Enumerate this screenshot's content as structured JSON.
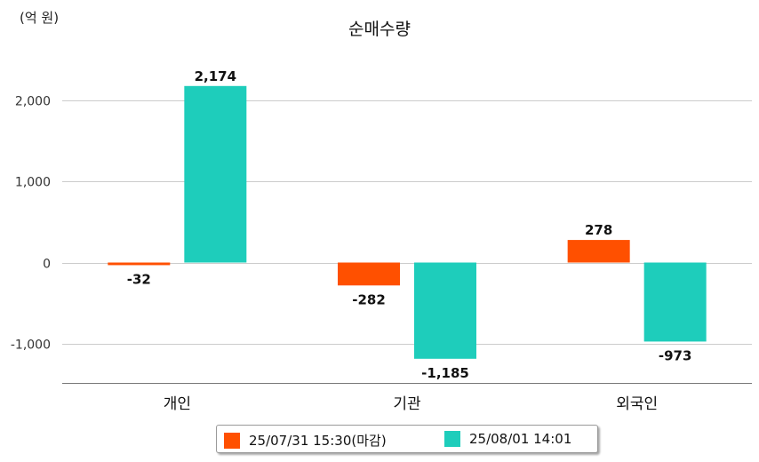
{
  "unit_label": "(억 원)",
  "chart_data": {
    "type": "bar",
    "title": "순매수량",
    "categories": [
      "개인",
      "기관",
      "외국인"
    ],
    "series": [
      {
        "name": "25/07/31 15:30(마감)",
        "color": "#ff5000",
        "values": [
          -32,
          -282,
          278
        ],
        "labels": [
          "-32",
          "-282",
          "278"
        ]
      },
      {
        "name": "25/08/01 14:01",
        "color": "#1ecdbb",
        "values": [
          2174,
          -1185,
          -973
        ],
        "labels": [
          "2,174",
          "-1,185",
          "-973"
        ]
      }
    ],
    "yticks": [
      2000,
      1000,
      0,
      -1000
    ],
    "ytick_labels": [
      "2,000",
      "1,000",
      "0",
      "-1,000"
    ],
    "ylim": [
      -1500,
      2400
    ],
    "grid": true,
    "legend_position": "bottom"
  },
  "colors": {
    "grid": "#cccccc",
    "axis": "#777777"
  }
}
